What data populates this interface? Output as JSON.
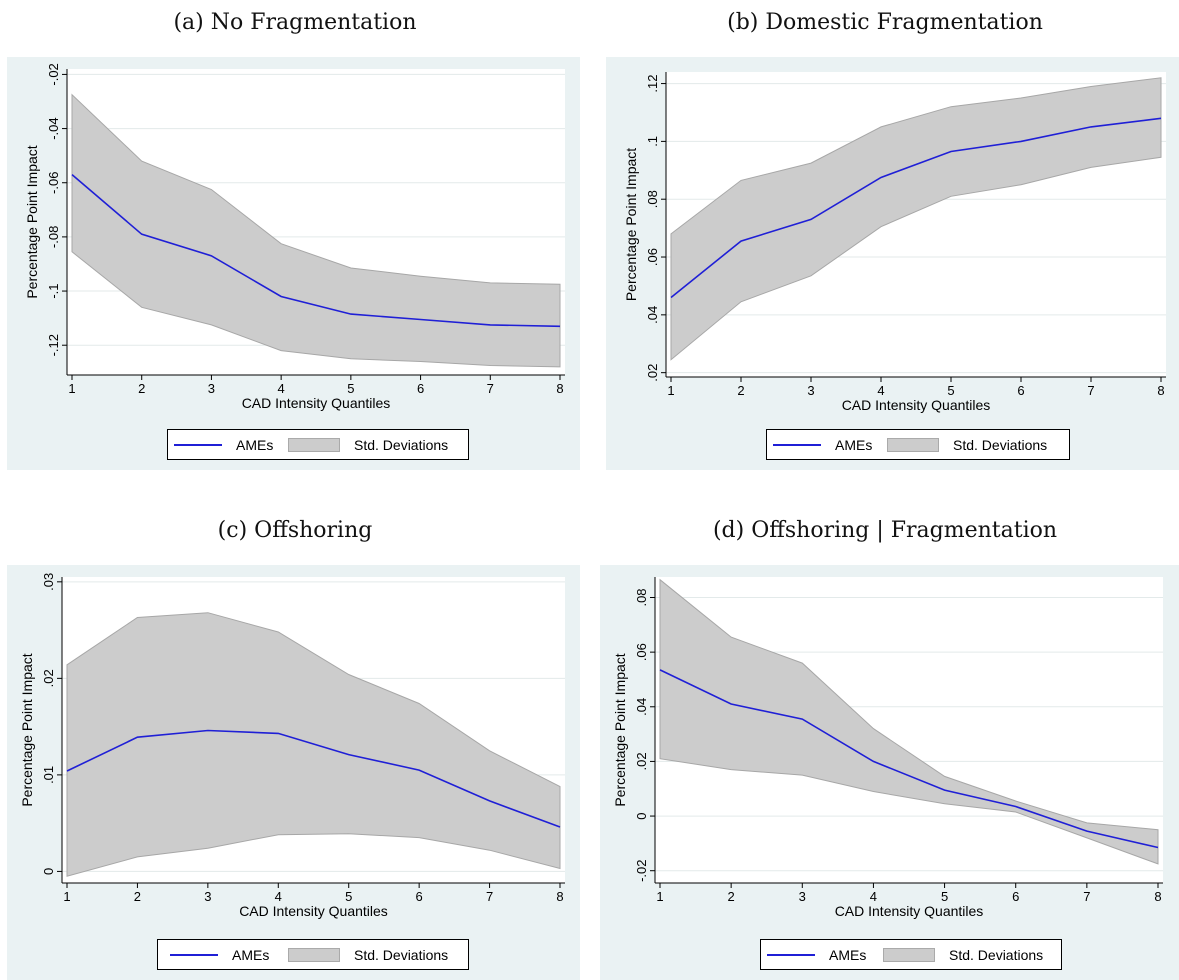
{
  "colors": {
    "panel_bg": "#eaf2f3",
    "plot_bg": "#ffffff",
    "line": "#1f1fd6",
    "band": "#cccccc",
    "band_edge": "#a7a7a7",
    "grid": "#e3eaea"
  },
  "panels": [
    {
      "caption": "(a) No Fragmentation",
      "legend": {
        "line": "AMEs",
        "band": "Std. Deviations"
      }
    },
    {
      "caption": "(b) Domestic Fragmentation",
      "legend": {
        "line": "AMEs",
        "band": "Std. Deviations"
      }
    },
    {
      "caption": "(c) Offshoring",
      "legend": {
        "line": "AMEs",
        "band": "Std. Deviations"
      }
    },
    {
      "caption": "(d) Offshoring | Fragmentation",
      "legend": {
        "line": "AMEs",
        "band": "Std. Deviations"
      }
    }
  ],
  "chart_data": [
    {
      "type": "line",
      "xlabel": "CAD Intensity Quantiles",
      "ylabel": "Percentage Point Impact",
      "x": [
        1,
        2,
        3,
        4,
        5,
        6,
        7,
        8
      ],
      "xticks": [
        "1",
        "2",
        "3",
        "4",
        "5",
        "6",
        "7",
        "8"
      ],
      "ylim": [
        -0.131,
        -0.018
      ],
      "yticks": [
        -0.12,
        -0.1,
        -0.08,
        -0.06,
        -0.04,
        -0.02
      ],
      "ytick_labels": [
        "-.12",
        "-.1",
        "-.08",
        "-.06",
        "-.04",
        "-.02"
      ],
      "series": [
        {
          "name": "AMEs",
          "type": "line",
          "values": [
            -0.057,
            -0.079,
            -0.087,
            -0.102,
            -0.1085,
            -0.1105,
            -0.1125,
            -0.113
          ]
        },
        {
          "name": "Std. Deviations",
          "type": "band",
          "lower": [
            -0.0855,
            -0.106,
            -0.1125,
            -0.122,
            -0.125,
            -0.126,
            -0.1275,
            -0.128
          ],
          "upper": [
            -0.0275,
            -0.052,
            -0.0625,
            -0.0825,
            -0.0915,
            -0.0945,
            -0.097,
            -0.0975
          ]
        }
      ],
      "legend": "bottom",
      "grid": true
    },
    {
      "type": "line",
      "xlabel": "CAD Intensity Quantiles",
      "ylabel": "Percentage Point Impact",
      "x": [
        1,
        2,
        3,
        4,
        5,
        6,
        7,
        8
      ],
      "xticks": [
        "1",
        "2",
        "3",
        "4",
        "5",
        "6",
        "7",
        "8"
      ],
      "ylim": [
        0.0185,
        0.124
      ],
      "yticks": [
        0.02,
        0.04,
        0.06,
        0.08,
        0.1,
        0.12
      ],
      "ytick_labels": [
        ".02",
        ".04",
        ".06",
        ".08",
        ".1",
        ".12"
      ],
      "series": [
        {
          "name": "AMEs",
          "type": "line",
          "values": [
            0.046,
            0.0655,
            0.073,
            0.0875,
            0.0965,
            0.1,
            0.105,
            0.108
          ]
        },
        {
          "name": "Std. Deviations",
          "type": "band",
          "lower": [
            0.0245,
            0.0445,
            0.0535,
            0.0705,
            0.081,
            0.085,
            0.091,
            0.0945
          ],
          "upper": [
            0.068,
            0.0865,
            0.0925,
            0.105,
            0.112,
            0.115,
            0.119,
            0.122
          ]
        }
      ],
      "legend": "bottom",
      "grid": true
    },
    {
      "type": "line",
      "xlabel": "CAD Intensity Quantiles",
      "ylabel": "Percentage Point Impact",
      "x": [
        1,
        2,
        3,
        4,
        5,
        6,
        7,
        8
      ],
      "xticks": [
        "1",
        "2",
        "3",
        "4",
        "5",
        "6",
        "7",
        "8"
      ],
      "ylim": [
        -0.0012,
        0.0305
      ],
      "yticks": [
        0,
        0.01,
        0.02,
        0.03
      ],
      "ytick_labels": [
        "0",
        ".01",
        ".02",
        ".03"
      ],
      "series": [
        {
          "name": "AMEs",
          "type": "line",
          "values": [
            0.0104,
            0.0139,
            0.0146,
            0.0143,
            0.0121,
            0.0105,
            0.0073,
            0.0046
          ]
        },
        {
          "name": "Std. Deviations",
          "type": "band",
          "lower": [
            -0.0005,
            0.0015,
            0.0024,
            0.0038,
            0.0039,
            0.0035,
            0.0022,
            0.0003
          ],
          "upper": [
            0.0214,
            0.0263,
            0.0268,
            0.0248,
            0.0204,
            0.0174,
            0.0125,
            0.0088
          ]
        }
      ],
      "legend": "bottom",
      "grid": true
    },
    {
      "type": "line",
      "xlabel": "CAD Intensity Quantiles",
      "ylabel": "Percentage Point Impact",
      "x": [
        1,
        2,
        3,
        4,
        5,
        6,
        7,
        8
      ],
      "xticks": [
        "1",
        "2",
        "3",
        "4",
        "5",
        "6",
        "7",
        "8"
      ],
      "ylim": [
        -0.0245,
        0.0875
      ],
      "yticks": [
        -0.02,
        0,
        0.02,
        0.04,
        0.06,
        0.08
      ],
      "ytick_labels": [
        "-.02",
        "0",
        ".02",
        ".04",
        ".06",
        ".08"
      ],
      "series": [
        {
          "name": "AMEs",
          "type": "line",
          "values": [
            0.0535,
            0.041,
            0.0355,
            0.02,
            0.0095,
            0.0035,
            -0.0055,
            -0.0115
          ]
        },
        {
          "name": "Std. Deviations",
          "type": "band",
          "lower": [
            0.021,
            0.017,
            0.015,
            0.009,
            0.0045,
            0.0015,
            -0.008,
            -0.0175
          ]
        },
        {
          "name": "Std. Deviations upper",
          "type": "band_upper",
          "upper": [
            0.0865,
            0.0655,
            0.056,
            0.032,
            0.0145,
            0.0055,
            -0.0025,
            -0.005
          ]
        }
      ],
      "legend": "bottom",
      "grid": true
    }
  ]
}
